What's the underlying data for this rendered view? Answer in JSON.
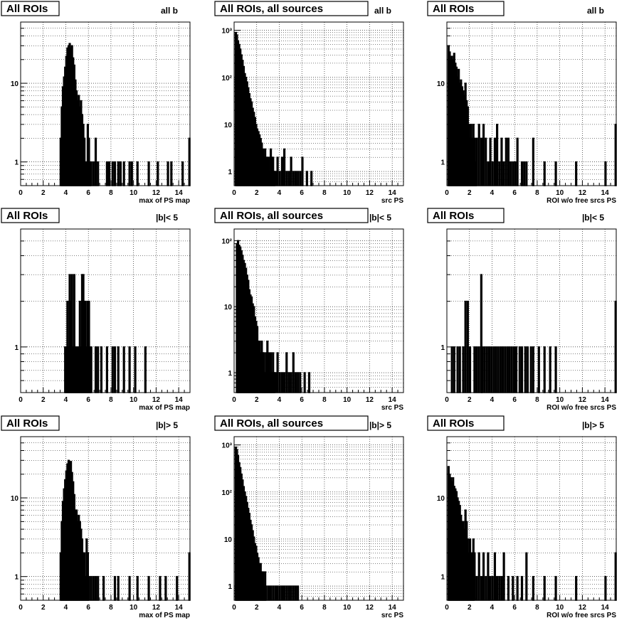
{
  "chart_data": [
    {
      "type": "histogram",
      "title": "All ROIs",
      "subtitle": "all b",
      "xlabel": "max of PS map",
      "xlim": [
        0,
        15
      ],
      "ylim": [
        0.5,
        60
      ],
      "ylog": true,
      "grid": true,
      "x_ticks": [
        "0",
        "2",
        "4",
        "6",
        "8",
        "10",
        "12",
        "14"
      ],
      "y_ticks": [
        "1",
        "10"
      ],
      "bins": [
        3.5,
        3.6,
        3.7,
        3.8,
        3.9,
        4.0,
        4.1,
        4.2,
        4.3,
        4.4,
        4.5,
        4.6,
        4.7,
        4.8,
        4.9,
        5.0,
        5.1,
        5.2,
        5.3,
        5.4,
        5.5,
        5.6,
        5.7,
        5.8,
        5.9,
        6.0,
        6.1,
        6.2,
        6.4,
        6.6,
        6.8,
        7.6,
        7.8,
        8.1,
        8.3,
        8.6,
        8.8,
        9.1,
        9.6,
        9.8,
        10.3,
        11.3,
        12.1,
        13.0,
        13.3,
        14.3,
        14.9
      ],
      "values": [
        2,
        5,
        9,
        12,
        16,
        22,
        28,
        30,
        32,
        28,
        30,
        21,
        17,
        11,
        8,
        6,
        7,
        5,
        6,
        4,
        3,
        2,
        1,
        1,
        3,
        2,
        1,
        1,
        1,
        2,
        1,
        1,
        1,
        1,
        1,
        1,
        1,
        1,
        1,
        1,
        1,
        1,
        1,
        1,
        1,
        1,
        2
      ]
    },
    {
      "type": "histogram",
      "title": "All ROIs, all sources",
      "subtitle": "all b",
      "xlabel": "src PS",
      "xlim": [
        0,
        15
      ],
      "ylim": [
        0.5,
        1500
      ],
      "ylog": true,
      "grid": true,
      "x_ticks": [
        "0",
        "2",
        "4",
        "6",
        "8",
        "10",
        "12",
        "14"
      ],
      "y_ticks": [
        "1",
        "10",
        "10²",
        "10³"
      ],
      "bins": [
        0.1,
        0.2,
        0.3,
        0.4,
        0.5,
        0.6,
        0.7,
        0.8,
        0.9,
        1.0,
        1.1,
        1.2,
        1.3,
        1.4,
        1.5,
        1.6,
        1.7,
        1.8,
        1.9,
        2.0,
        2.1,
        2.2,
        2.3,
        2.4,
        2.5,
        2.6,
        2.7,
        2.8,
        2.9,
        3.0,
        3.1,
        3.2,
        3.3,
        3.4,
        3.5,
        3.6,
        3.8,
        4.0,
        4.2,
        4.4,
        4.6,
        4.8,
        5.0,
        5.2,
        5.4,
        5.6,
        5.8,
        6.0,
        6.4,
        6.8
      ],
      "values": [
        900,
        800,
        600,
        500,
        400,
        300,
        230,
        170,
        120,
        100,
        80,
        60,
        45,
        35,
        30,
        22,
        18,
        14,
        10,
        8,
        7,
        6,
        5,
        4,
        3,
        2,
        3,
        2,
        2,
        2,
        1,
        3,
        2,
        2,
        1,
        1,
        2,
        1,
        2,
        3,
        1,
        1,
        2,
        1,
        1,
        1,
        1,
        2,
        1,
        1
      ]
    },
    {
      "type": "histogram",
      "title": "All ROIs",
      "subtitle": "all b",
      "xlabel": "ROI w/o free srcs PS",
      "xlim": [
        0,
        15
      ],
      "ylim": [
        0.5,
        60
      ],
      "ylog": true,
      "grid": true,
      "x_ticks": [
        "0",
        "2",
        "4",
        "6",
        "8",
        "10",
        "12",
        "14"
      ],
      "y_ticks": [
        "1",
        "10"
      ],
      "bins": [
        0.1,
        0.2,
        0.3,
        0.4,
        0.5,
        0.6,
        0.7,
        0.8,
        0.9,
        1.0,
        1.1,
        1.2,
        1.3,
        1.4,
        1.5,
        1.6,
        1.7,
        1.8,
        1.9,
        2.0,
        2.1,
        2.2,
        2.3,
        2.4,
        2.5,
        2.6,
        2.8,
        3.0,
        3.2,
        3.4,
        3.6,
        3.8,
        4.0,
        4.2,
        4.4,
        4.6,
        4.8,
        5.0,
        5.2,
        5.4,
        5.6,
        5.8,
        6.0,
        6.2,
        6.6,
        6.8,
        7.0,
        7.6,
        8.6,
        9.6,
        11.4,
        14.0,
        14.9
      ],
      "values": [
        30,
        25,
        20,
        22,
        20,
        24,
        18,
        16,
        12,
        15,
        10,
        11,
        9,
        8,
        7,
        10,
        6,
        5,
        3,
        2,
        3,
        2,
        3,
        2,
        1,
        2,
        3,
        2,
        3,
        2,
        1,
        2,
        1,
        2,
        3,
        1,
        2,
        1,
        2,
        2,
        1,
        1,
        1,
        2,
        1,
        1,
        1,
        2,
        1,
        1,
        1,
        1,
        3
      ]
    },
    {
      "type": "histogram",
      "title": "All ROIs",
      "subtitle": "|b|< 5",
      "xlabel": "max of PS map",
      "xlim": [
        0,
        15
      ],
      "ylim": [
        0.5,
        6
      ],
      "ylog": true,
      "grid": true,
      "x_ticks": [
        "0",
        "2",
        "4",
        "6",
        "8",
        "10",
        "12",
        "14"
      ],
      "y_ticks": [
        "1"
      ],
      "bins": [
        3.9,
        4.0,
        4.1,
        4.2,
        4.3,
        4.4,
        4.5,
        4.6,
        4.7,
        4.8,
        4.9,
        5.0,
        5.1,
        5.2,
        5.3,
        5.4,
        5.5,
        5.6,
        5.7,
        5.8,
        5.9,
        6.0,
        6.1,
        6.2,
        6.6,
        6.8,
        7.1,
        7.6,
        8.1,
        8.3,
        8.6,
        9.1,
        9.6,
        10.1,
        11.0
      ],
      "values": [
        1,
        1,
        2,
        1,
        3,
        2,
        3,
        1,
        3,
        1,
        1,
        1,
        1,
        2,
        1,
        3,
        3,
        2,
        2,
        1,
        2,
        2,
        1,
        1,
        1,
        1,
        1,
        1,
        1,
        1,
        1,
        1,
        1,
        1,
        1
      ]
    },
    {
      "type": "histogram",
      "title": "All ROIs, all sources",
      "subtitle": "|b|< 5",
      "xlabel": "src PS",
      "xlim": [
        0,
        15
      ],
      "ylim": [
        0.5,
        150
      ],
      "ylog": true,
      "grid": true,
      "x_ticks": [
        "0",
        "2",
        "4",
        "6",
        "8",
        "10",
        "12",
        "14"
      ],
      "y_ticks": [
        "1",
        "10",
        "10²"
      ],
      "bins": [
        0.2,
        0.3,
        0.4,
        0.5,
        0.6,
        0.7,
        0.8,
        0.9,
        1.0,
        1.1,
        1.2,
        1.3,
        1.4,
        1.5,
        1.6,
        1.7,
        1.8,
        1.9,
        2.0,
        2.1,
        2.2,
        2.3,
        2.4,
        2.5,
        2.6,
        2.7,
        2.8,
        2.9,
        3.0,
        3.1,
        3.2,
        3.3,
        3.4,
        3.5,
        3.6,
        3.8,
        4.0,
        4.2,
        4.4,
        4.6,
        4.8,
        5.0,
        5.2,
        5.4,
        5.6,
        5.8,
        6.2,
        6.6
      ],
      "values": [
        90,
        100,
        85,
        80,
        70,
        60,
        50,
        45,
        38,
        30,
        25,
        18,
        15,
        14,
        11,
        10,
        7,
        6,
        5,
        3,
        3,
        2,
        3,
        2,
        2,
        1,
        2,
        3,
        2,
        1,
        2,
        1,
        2,
        1,
        1,
        2,
        1,
        1,
        1,
        2,
        1,
        1,
        2,
        1,
        1,
        1,
        1,
        1
      ]
    },
    {
      "type": "histogram",
      "title": "All ROIs",
      "subtitle": "|b|< 5",
      "xlabel": "ROI w/o free srcs PS",
      "xlim": [
        0,
        15
      ],
      "ylim": [
        0.5,
        6
      ],
      "ylog": true,
      "grid": true,
      "x_ticks": [
        "0",
        "2",
        "4",
        "6",
        "8",
        "10",
        "12",
        "14"
      ],
      "y_ticks": [
        "1"
      ],
      "bins": [
        0.4,
        0.6,
        0.9,
        1.1,
        1.4,
        1.6,
        1.8,
        2.0,
        2.4,
        2.6,
        2.8,
        3.0,
        3.1,
        3.3,
        3.5,
        3.7,
        3.9,
        4.1,
        4.3,
        4.5,
        4.7,
        4.9,
        5.1,
        5.3,
        5.5,
        5.7,
        5.9,
        6.1,
        6.4,
        6.6,
        6.9,
        7.1,
        7.4,
        7.6,
        8.1,
        8.6,
        9.1,
        9.6,
        14.9
      ],
      "values": [
        1,
        1,
        1,
        1,
        1,
        2,
        2,
        1,
        1,
        1,
        1,
        3,
        1,
        1,
        1,
        1,
        1,
        1,
        1,
        1,
        1,
        1,
        1,
        1,
        1,
        1,
        1,
        1,
        1,
        1,
        1,
        1,
        1,
        1,
        1,
        1,
        1,
        1,
        2
      ]
    },
    {
      "type": "histogram",
      "title": "All ROIs",
      "subtitle": "|b|> 5",
      "xlabel": "max of PS map",
      "xlim": [
        0,
        15
      ],
      "ylim": [
        0.5,
        60
      ],
      "ylog": true,
      "grid": true,
      "x_ticks": [
        "0",
        "2",
        "4",
        "6",
        "8",
        "10",
        "12",
        "14"
      ],
      "y_ticks": [
        "1",
        "10"
      ],
      "bins": [
        3.5,
        3.6,
        3.7,
        3.8,
        3.9,
        4.0,
        4.1,
        4.2,
        4.3,
        4.4,
        4.5,
        4.6,
        4.7,
        4.8,
        4.9,
        5.0,
        5.1,
        5.2,
        5.3,
        5.4,
        5.5,
        5.6,
        5.7,
        5.8,
        5.9,
        6.0,
        6.2,
        6.4,
        6.6,
        6.8,
        7.3,
        8.3,
        8.6,
        9.6,
        10.3,
        11.3,
        12.3,
        12.8,
        13.8,
        14.9
      ],
      "values": [
        2,
        5,
        9,
        13,
        17,
        22,
        27,
        30,
        26,
        29,
        21,
        16,
        11,
        7,
        7,
        5,
        6,
        5,
        4,
        3,
        2,
        2,
        1,
        3,
        2,
        1,
        1,
        1,
        1,
        1,
        1,
        1,
        1,
        1,
        1,
        1,
        1,
        1,
        1,
        2
      ]
    },
    {
      "type": "histogram",
      "title": "All ROIs, all sources",
      "subtitle": "|b|> 5",
      "xlabel": "src PS",
      "xlim": [
        0,
        15
      ],
      "ylim": [
        0.5,
        1500
      ],
      "ylog": true,
      "grid": true,
      "x_ticks": [
        "0",
        "2",
        "4",
        "6",
        "8",
        "10",
        "12",
        "14"
      ],
      "y_ticks": [
        "1",
        "10",
        "10²",
        "10³"
      ],
      "bins": [
        0.1,
        0.2,
        0.3,
        0.4,
        0.5,
        0.6,
        0.7,
        0.8,
        0.9,
        1.0,
        1.1,
        1.2,
        1.3,
        1.4,
        1.5,
        1.6,
        1.7,
        1.8,
        1.9,
        2.0,
        2.1,
        2.2,
        2.3,
        2.4,
        2.5,
        2.6,
        2.7,
        2.8,
        3.0,
        3.2,
        3.4,
        3.6,
        3.8,
        4.0,
        4.2,
        4.4,
        4.6,
        4.8,
        5.0,
        5.2,
        5.4,
        5.6
      ],
      "values": [
        900,
        800,
        600,
        420,
        330,
        240,
        180,
        130,
        100,
        80,
        60,
        45,
        35,
        25,
        20,
        15,
        11,
        8,
        7,
        5,
        4,
        3,
        3,
        2,
        2,
        1,
        2,
        1,
        1,
        1,
        1,
        1,
        1,
        1,
        1,
        1,
        1,
        1,
        1,
        1,
        1,
        1
      ]
    },
    {
      "type": "histogram",
      "title": "All ROIs",
      "subtitle": "|b|> 5",
      "xlabel": "ROI w/o free srcs PS",
      "xlim": [
        0,
        15
      ],
      "ylim": [
        0.5,
        60
      ],
      "ylog": true,
      "grid": true,
      "x_ticks": [
        "0",
        "2",
        "4",
        "6",
        "8",
        "10",
        "12",
        "14"
      ],
      "y_ticks": [
        "1",
        "10"
      ],
      "bins": [
        0.1,
        0.2,
        0.3,
        0.4,
        0.5,
        0.6,
        0.7,
        0.8,
        0.9,
        1.0,
        1.1,
        1.2,
        1.3,
        1.4,
        1.5,
        1.6,
        1.7,
        1.8,
        1.9,
        2.0,
        2.1,
        2.2,
        2.3,
        2.4,
        2.6,
        2.8,
        3.0,
        3.2,
        3.4,
        3.6,
        3.8,
        4.0,
        4.2,
        4.4,
        4.6,
        4.8,
        5.0,
        5.4,
        5.8,
        6.2,
        6.6,
        7.0,
        7.6,
        8.6,
        9.6,
        11.4,
        14.0,
        14.9
      ],
      "values": [
        25,
        20,
        18,
        16,
        18,
        14,
        13,
        12,
        10,
        9,
        8,
        6,
        5,
        5,
        4,
        7,
        5,
        3,
        2,
        3,
        2,
        2,
        3,
        2,
        1,
        2,
        1,
        2,
        1,
        2,
        1,
        1,
        2,
        1,
        1,
        1,
        2,
        1,
        1,
        1,
        1,
        2,
        1,
        1,
        1,
        1,
        1,
        2
      ]
    }
  ]
}
